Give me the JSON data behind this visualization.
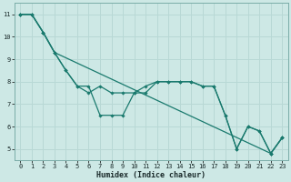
{
  "xlabel": "Humidex (Indice chaleur)",
  "background_color": "#cde8e5",
  "grid_color": "#b8d8d5",
  "line_color": "#1a7a6e",
  "xlim": [
    -0.5,
    23.5
  ],
  "ylim": [
    4.5,
    11.5
  ],
  "xticks": [
    0,
    1,
    2,
    3,
    4,
    5,
    6,
    7,
    8,
    9,
    10,
    11,
    12,
    13,
    14,
    15,
    16,
    17,
    18,
    19,
    20,
    21,
    22,
    23
  ],
  "yticks": [
    5,
    6,
    7,
    8,
    9,
    10,
    11
  ],
  "line1_x": [
    0,
    1,
    2,
    3,
    4,
    5,
    6,
    7,
    8,
    9,
    10,
    11,
    12,
    13,
    14,
    15,
    16,
    17,
    18,
    19,
    20,
    21,
    22,
    23
  ],
  "line1_y": [
    11.0,
    11.0,
    10.2,
    9.3,
    8.5,
    7.8,
    7.8,
    6.5,
    6.5,
    6.5,
    7.5,
    7.8,
    8.0,
    8.0,
    8.0,
    8.0,
    7.8,
    7.8,
    6.5,
    5.0,
    6.0,
    5.8,
    4.8,
    5.5
  ],
  "line2_x": [
    0,
    1,
    2,
    3,
    4,
    5,
    6,
    7,
    8,
    9,
    10,
    11,
    12,
    13,
    14,
    15,
    16,
    17,
    18,
    19,
    20,
    21,
    22,
    23
  ],
  "line2_y": [
    11.0,
    11.0,
    10.2,
    9.3,
    8.5,
    7.8,
    7.5,
    7.8,
    7.5,
    7.5,
    7.5,
    7.5,
    8.0,
    8.0,
    8.0,
    8.0,
    7.8,
    7.8,
    6.5,
    5.0,
    6.0,
    5.8,
    4.8,
    5.5
  ],
  "line3_x": [
    0,
    1,
    2,
    3,
    22,
    23
  ],
  "line3_y": [
    11.0,
    11.0,
    10.2,
    9.3,
    4.8,
    5.5
  ]
}
